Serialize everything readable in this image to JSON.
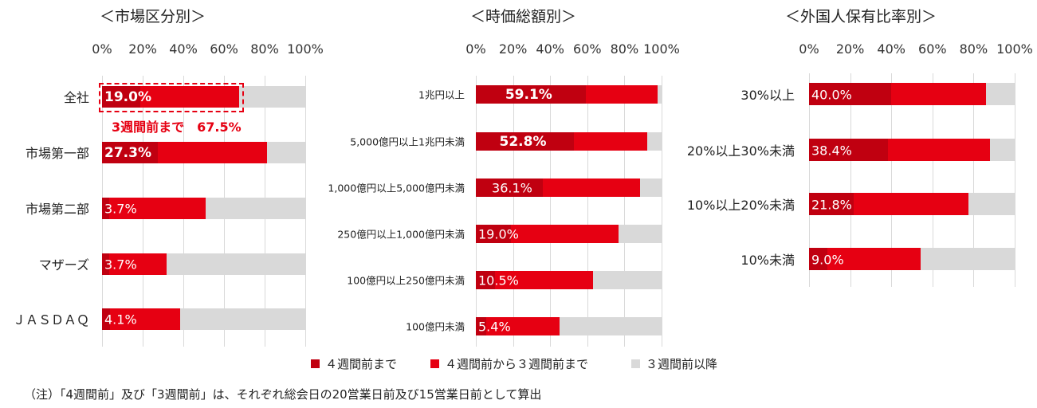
{
  "colors": {
    "before_4w": "#c00010",
    "4w_to_3w": "#e60012",
    "after_3w": "#d9d9d9"
  },
  "legend": [
    "４週間前まで",
    "４週間前から３週間前まで",
    "３週間前以降"
  ],
  "note": "（注）「4週間前」及び「3週間前」は、それぞれ総会日の20営業日前及び15営業日前として算出",
  "chart_data": [
    {
      "type": "bar",
      "orientation": "horizontal",
      "stacked": true,
      "title": "＜市場区分別＞",
      "xlim": [
        0,
        100
      ],
      "ticks": [
        "0%",
        "20%",
        "40%",
        "60%",
        "80%",
        "100%"
      ],
      "grid": true,
      "categories": [
        "全社",
        "市場第一部",
        "市場第二部",
        "マザーズ",
        "ＪＡＳＤＡＱ"
      ],
      "series": [
        {
          "name": "４週間前まで",
          "values": [
            19.0,
            27.3,
            3.7,
            3.7,
            4.1
          ]
        },
        {
          "name": "４週間前から３週間前まで",
          "values": [
            48.5,
            53.9,
            47.3,
            28.1,
            34.3
          ]
        },
        {
          "name": "３週間前以降",
          "values": [
            32.5,
            18.8,
            49.0,
            68.2,
            61.6
          ]
        }
      ],
      "data_labels": [
        "19.0%",
        "27.3%",
        "3.7%",
        "3.7%",
        "4.1%"
      ],
      "annotation": "3週間前まで　67.5%"
    },
    {
      "type": "bar",
      "orientation": "horizontal",
      "stacked": true,
      "title": "＜時価総額別＞",
      "xlim": [
        0,
        100
      ],
      "ticks": [
        "0%",
        "20%",
        "40%",
        "60%",
        "80%",
        "100%"
      ],
      "grid": true,
      "categories": [
        "1兆円以上",
        "5,000億円以上1兆円未満",
        "1,000億円以上5,000億円未満",
        "250億円以上1,000億円未満",
        "100億円以上250億円未満",
        "100億円未満"
      ],
      "series": [
        {
          "name": "４週間前まで",
          "values": [
            59.1,
            52.8,
            36.1,
            19.0,
            10.5,
            5.4
          ]
        },
        {
          "name": "４週間前から３週間前まで",
          "values": [
            38.8,
            39.5,
            52.3,
            57.8,
            52.6,
            39.6
          ]
        },
        {
          "name": "３週間前以降",
          "values": [
            2.1,
            7.7,
            11.6,
            23.2,
            36.9,
            55.0
          ]
        }
      ],
      "data_labels": [
        "59.1%",
        "52.8%",
        "36.1%",
        "19.0%",
        "10.5%",
        "5.4%"
      ]
    },
    {
      "type": "bar",
      "orientation": "horizontal",
      "stacked": true,
      "title": "＜外国人保有比率別＞",
      "xlim": [
        0,
        100
      ],
      "ticks": [
        "0%",
        "20%",
        "40%",
        "60%",
        "80%",
        "100%"
      ],
      "grid": true,
      "categories": [
        "30%以上",
        "20%以上30%未満",
        "10%以上20%未満",
        "10%未満"
      ],
      "series": [
        {
          "name": "４週間前まで",
          "values": [
            40.0,
            38.4,
            21.8,
            9.0
          ]
        },
        {
          "name": "４週間前から３週間前まで",
          "values": [
            46.0,
            49.6,
            55.7,
            45.3
          ]
        },
        {
          "name": "３週間前以降",
          "values": [
            14.0,
            12.0,
            22.5,
            45.7
          ]
        }
      ],
      "data_labels": [
        "40.0%",
        "38.4%",
        "21.8%",
        "9.0%"
      ]
    }
  ]
}
